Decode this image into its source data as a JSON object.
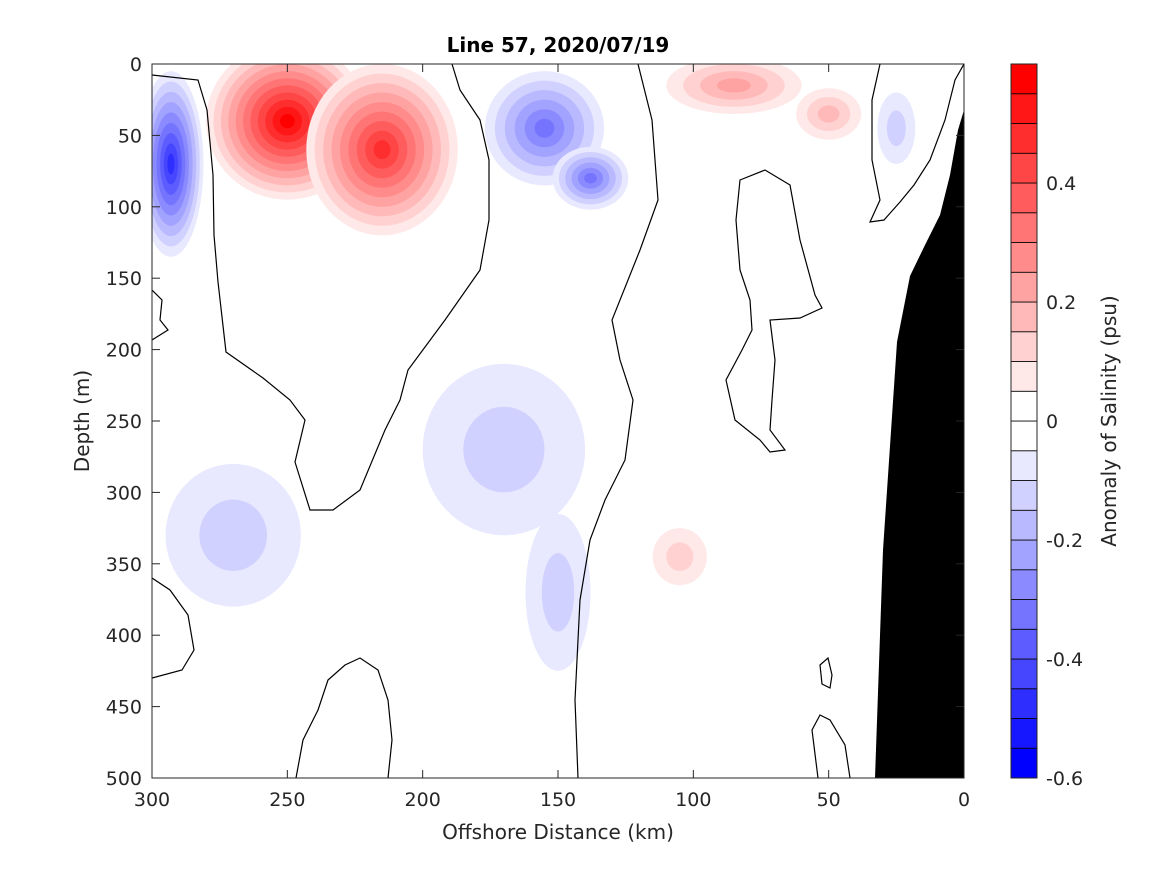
{
  "chart_data": {
    "type": "heatmap",
    "title": "Line 57, 2020/07/19",
    "xlabel": "Offshore Distance (km)",
    "ylabel": "Depth (m)",
    "xlim": [
      300,
      0
    ],
    "ylim": [
      0,
      500
    ],
    "x_reversed": true,
    "y_reversed": true,
    "x_ticks": [
      300,
      250,
      200,
      150,
      100,
      50,
      0
    ],
    "y_ticks": [
      0,
      50,
      100,
      150,
      200,
      250,
      300,
      350,
      400,
      450,
      500
    ],
    "colorbar": {
      "label": "Anomaly of Salinity (psu)",
      "range": [
        -0.6,
        0.6
      ],
      "ticks": [
        -0.6,
        -0.4,
        -0.2,
        0,
        0.2,
        0.4
      ],
      "tick_labels": [
        "-0.6",
        "-0.4",
        "-0.2",
        "0",
        "0.2",
        "0.4"
      ],
      "levels": 24,
      "low_color": "#0000ff",
      "high_color": "#ff0000"
    },
    "features": [
      {
        "name": "blue-core-offshore",
        "x": 293,
        "depth": 70,
        "value": -0.45,
        "rx": 12,
        "ry": 65
      },
      {
        "name": "red-core-main",
        "x": 250,
        "depth": 40,
        "value": 0.55,
        "rx": 30,
        "ry": 55
      },
      {
        "name": "red-core-second",
        "x": 215,
        "depth": 60,
        "value": 0.45,
        "rx": 28,
        "ry": 60
      },
      {
        "name": "blue-core-mid-upper",
        "x": 155,
        "depth": 45,
        "value": -0.3,
        "rx": 22,
        "ry": 40
      },
      {
        "name": "blue-core-mid-lower",
        "x": 138,
        "depth": 80,
        "value": -0.3,
        "rx": 14,
        "ry": 22
      },
      {
        "name": "red-patch-inshore",
        "x": 85,
        "depth": 15,
        "value": 0.2,
        "rx": 25,
        "ry": 20
      },
      {
        "name": "red-patch-near-50",
        "x": 50,
        "depth": 35,
        "value": 0.15,
        "rx": 12,
        "ry": 18
      },
      {
        "name": "blue-patch-nearshore",
        "x": 25,
        "depth": 45,
        "value": -0.1,
        "rx": 7,
        "ry": 25
      },
      {
        "name": "blue-patch-deep-1",
        "x": 270,
        "depth": 330,
        "value": -0.08,
        "rx": 25,
        "ry": 50
      },
      {
        "name": "blue-patch-deep-2",
        "x": 170,
        "depth": 270,
        "value": -0.08,
        "rx": 30,
        "ry": 60
      },
      {
        "name": "blue-patch-deep-3",
        "x": 150,
        "depth": 370,
        "value": -0.08,
        "rx": 12,
        "ry": 55
      },
      {
        "name": "red-patch-deep",
        "x": 105,
        "depth": 345,
        "value": 0.08,
        "rx": 10,
        "ry": 20
      }
    ],
    "bathymetry": "filled black region at inshore side (x approx 0–33 km), depth from ~40 m at 0 km to 500 m at ~33 km",
    "zero_contour": true,
    "grid": false
  }
}
